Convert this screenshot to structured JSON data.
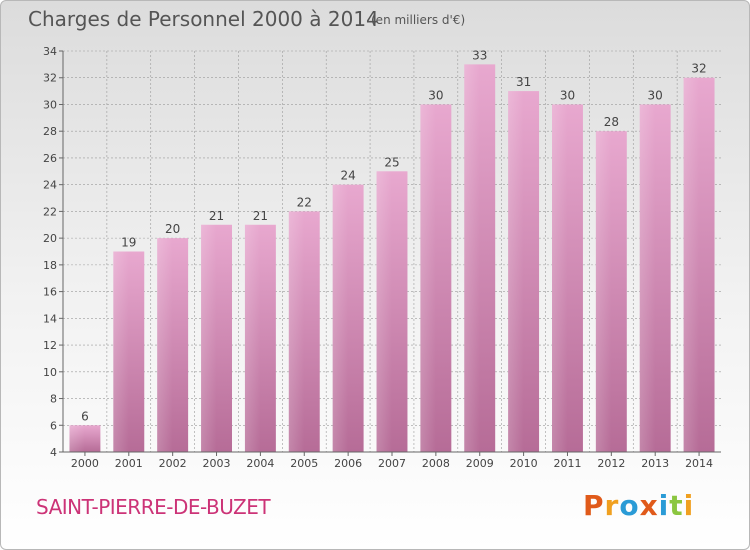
{
  "header": {
    "title": "Charges de Personnel 2000 à 2014",
    "subtitle": "(en milliers d'€)"
  },
  "footer": {
    "commune": "SAINT-PIERRE-DE-BUZET",
    "brand": "Proxiti"
  },
  "colors": {
    "bar_top": "#e8a8cf",
    "bar_bottom": "#b66c97",
    "commune": "#cc3377",
    "logo_letters": [
      "#e05a1a",
      "#f0a020",
      "#2a9bd6",
      "#e05a1a",
      "#2a9bd6",
      "#8bc640",
      "#f0a020"
    ]
  },
  "chart_data": {
    "type": "bar",
    "categories": [
      "2000",
      "2001",
      "2002",
      "2003",
      "2004",
      "2005",
      "2006",
      "2007",
      "2008",
      "2009",
      "2010",
      "2011",
      "2012",
      "2013",
      "2014"
    ],
    "values": [
      6,
      19,
      20,
      21,
      21,
      22,
      24,
      25,
      30,
      33,
      31,
      30,
      28,
      30,
      32
    ],
    "title": "Charges de Personnel 2000 à 2014",
    "subtitle": "(en milliers d'€)",
    "ylim": [
      4,
      34
    ],
    "yticks": [
      4,
      6,
      8,
      10,
      12,
      14,
      16,
      18,
      20,
      22,
      24,
      26,
      28,
      30,
      32,
      34
    ],
    "grid": true,
    "data_labels": true
  }
}
